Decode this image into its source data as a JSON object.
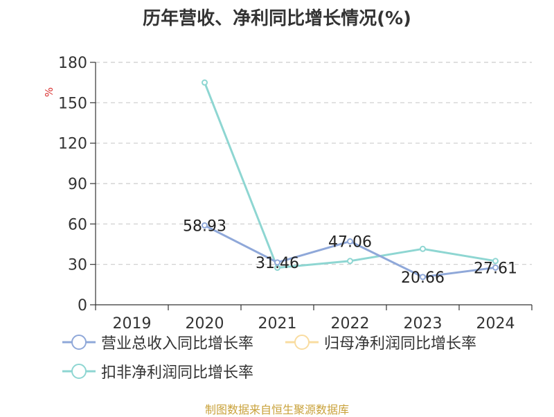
{
  "chart_data": {
    "type": "line",
    "title": "历年营收、净利同比增长情况(%)",
    "ylabel": "%",
    "xlabel": "",
    "ylim": [
      0,
      180
    ],
    "yticks": [
      0,
      30,
      60,
      90,
      120,
      150,
      180
    ],
    "categories": [
      "2019",
      "2020",
      "2021",
      "2022",
      "2023",
      "2024"
    ],
    "grid": true,
    "legend_position": "bottom",
    "series": [
      {
        "name": "营业总收入同比增长率",
        "color": "#8fa8d9",
        "values": [
          null,
          58.93,
          31.46,
          47.06,
          20.66,
          27.61
        ],
        "labels": [
          "",
          "58.93",
          "31.46",
          "47.06",
          "20.66",
          "27.61"
        ]
      },
      {
        "name": "归母净利润同比增长率",
        "color": "#f9dca0",
        "values": [
          null,
          null,
          null,
          null,
          null,
          null
        ],
        "labels": [
          "",
          "",
          "",
          "",
          "",
          ""
        ]
      },
      {
        "name": "扣非净利润同比增长率",
        "color": "#8ed6d2",
        "values": [
          null,
          165,
          27.5,
          32.5,
          41.5,
          32.5
        ],
        "labels": [
          "",
          "",
          "",
          "",
          "",
          ""
        ]
      }
    ]
  },
  "footer": {
    "source": "制图数据来自恒生聚源数据库"
  }
}
